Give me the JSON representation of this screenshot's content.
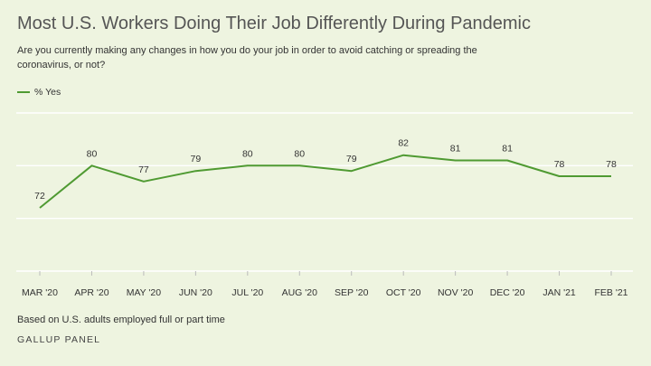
{
  "header": {
    "title": "Most U.S. Workers Doing Their Job Differently During Pandemic",
    "subtitle": "Are you currently making any changes in how you do your job in order to avoid catching or spreading the coronavirus, or not?"
  },
  "footer": {
    "note": "Based on U.S. adults employed full or part time",
    "source": "GALLUP PANEL"
  },
  "colors": {
    "line": "#4f9a32",
    "grid": "#ffffff",
    "background": "#eef4e0"
  },
  "chart_data": {
    "type": "line",
    "categories": [
      "MAR '20",
      "APR '20",
      "MAY '20",
      "JUN '20",
      "JUL '20",
      "AUG '20",
      "SEP '20",
      "OCT '20",
      "NOV '20",
      "DEC '20",
      "JAN '21",
      "FEB '21"
    ],
    "series": [
      {
        "name": "% Yes",
        "values": [
          72,
          80,
          77,
          79,
          80,
          80,
          79,
          82,
          81,
          81,
          78,
          78
        ]
      }
    ],
    "ylim": [
      60,
      90
    ],
    "grid": true,
    "legend_position": "top-left",
    "data_labels": true
  }
}
